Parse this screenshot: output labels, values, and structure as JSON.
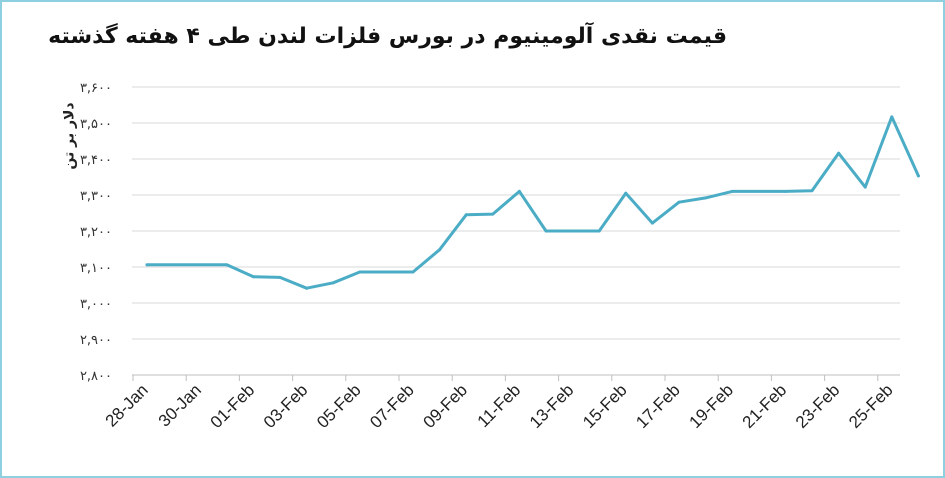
{
  "chart_data": {
    "type": "line",
    "title": "قیمت نقدی آلومینیوم در بورس فلزات لندن طی ۴ هفته گذشته",
    "xlabel": "",
    "ylabel": "دلار بر تن",
    "ylim": [
      2800,
      3600
    ],
    "yticks": [
      {
        "value": 3600,
        "label": "۳,۶۰۰"
      },
      {
        "value": 3500,
        "label": "۳,۵۰۰"
      },
      {
        "value": 3400,
        "label": "۳,۴۰۰"
      },
      {
        "value": 3300,
        "label": "۳,۳۰۰"
      },
      {
        "value": 3200,
        "label": "۳,۲۰۰"
      },
      {
        "value": 3100,
        "label": "۳,۱۰۰"
      },
      {
        "value": 3000,
        "label": "۳,۰۰۰"
      },
      {
        "value": 2900,
        "label": "۲,۹۰۰"
      },
      {
        "value": 2800,
        "label": "۲,۸۰۰"
      }
    ],
    "x_tick_labels": [
      "28-Jan",
      "30-Jan",
      "01-Feb",
      "03-Feb",
      "05-Feb",
      "07-Feb",
      "09-Feb",
      "11-Feb",
      "13-Feb",
      "15-Feb",
      "17-Feb",
      "19-Feb",
      "21-Feb",
      "23-Feb",
      "25-Feb"
    ],
    "x_start": "2022-01-28",
    "grid": true,
    "color": "#4bacc6",
    "series": [
      {
        "name": "",
        "points": [
          {
            "date": "2022-01-28",
            "value": 3106
          },
          {
            "date": "2022-01-31",
            "value": 3106
          },
          {
            "date": "2022-02-01",
            "value": 3073
          },
          {
            "date": "2022-02-02",
            "value": 3071
          },
          {
            "date": "2022-02-03",
            "value": 3041
          },
          {
            "date": "2022-02-04",
            "value": 3056
          },
          {
            "date": "2022-02-05",
            "value": 3086
          },
          {
            "date": "2022-02-07",
            "value": 3086
          },
          {
            "date": "2022-02-08",
            "value": 3148
          },
          {
            "date": "2022-02-09",
            "value": 3245
          },
          {
            "date": "2022-02-10",
            "value": 3247
          },
          {
            "date": "2022-02-11",
            "value": 3310
          },
          {
            "date": "2022-02-12",
            "value": 3200
          },
          {
            "date": "2022-02-14",
            "value": 3200
          },
          {
            "date": "2022-02-15",
            "value": 3305
          },
          {
            "date": "2022-02-16",
            "value": 3222
          },
          {
            "date": "2022-02-17",
            "value": 3280
          },
          {
            "date": "2022-02-18",
            "value": 3292
          },
          {
            "date": "2022-02-19",
            "value": 3310
          },
          {
            "date": "2022-02-21",
            "value": 3310
          },
          {
            "date": "2022-02-22",
            "value": 3312
          },
          {
            "date": "2022-02-23",
            "value": 3416
          },
          {
            "date": "2022-02-24",
            "value": 3322
          },
          {
            "date": "2022-02-25",
            "value": 3517
          },
          {
            "date": "2022-02-26",
            "value": 3353
          }
        ]
      }
    ]
  }
}
